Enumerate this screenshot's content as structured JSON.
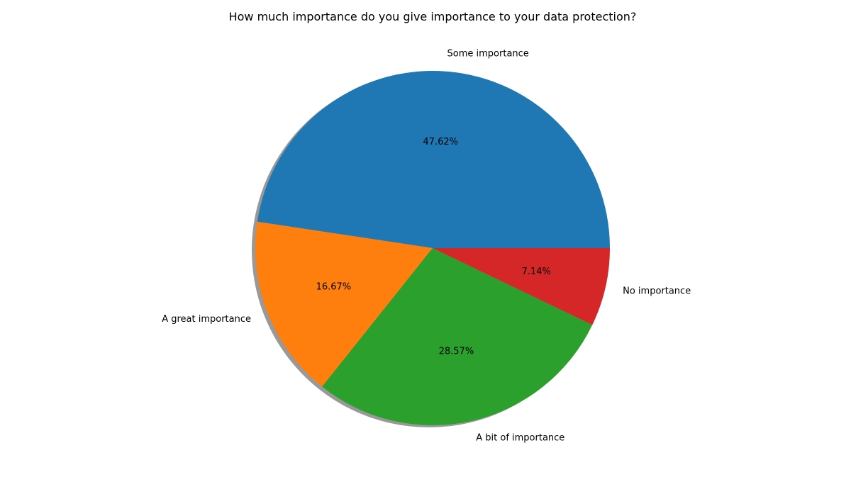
{
  "chart_data": {
    "type": "pie",
    "title": "How much importance do you give importance to your data protection?",
    "categories": [
      "Some importance",
      "A great importance",
      "A bit of importance",
      "No importance"
    ],
    "values": [
      47.62,
      16.67,
      28.57,
      7.14
    ],
    "percent_labels": [
      "47.62%",
      "16.67%",
      "28.57%",
      "7.14%"
    ],
    "colors": [
      "#1f77b4",
      "#ff7f0e",
      "#2ca02c",
      "#d62728"
    ],
    "start_angle_deg": 0,
    "direction": "counterclockwise",
    "shadow": true,
    "legend": "none"
  }
}
